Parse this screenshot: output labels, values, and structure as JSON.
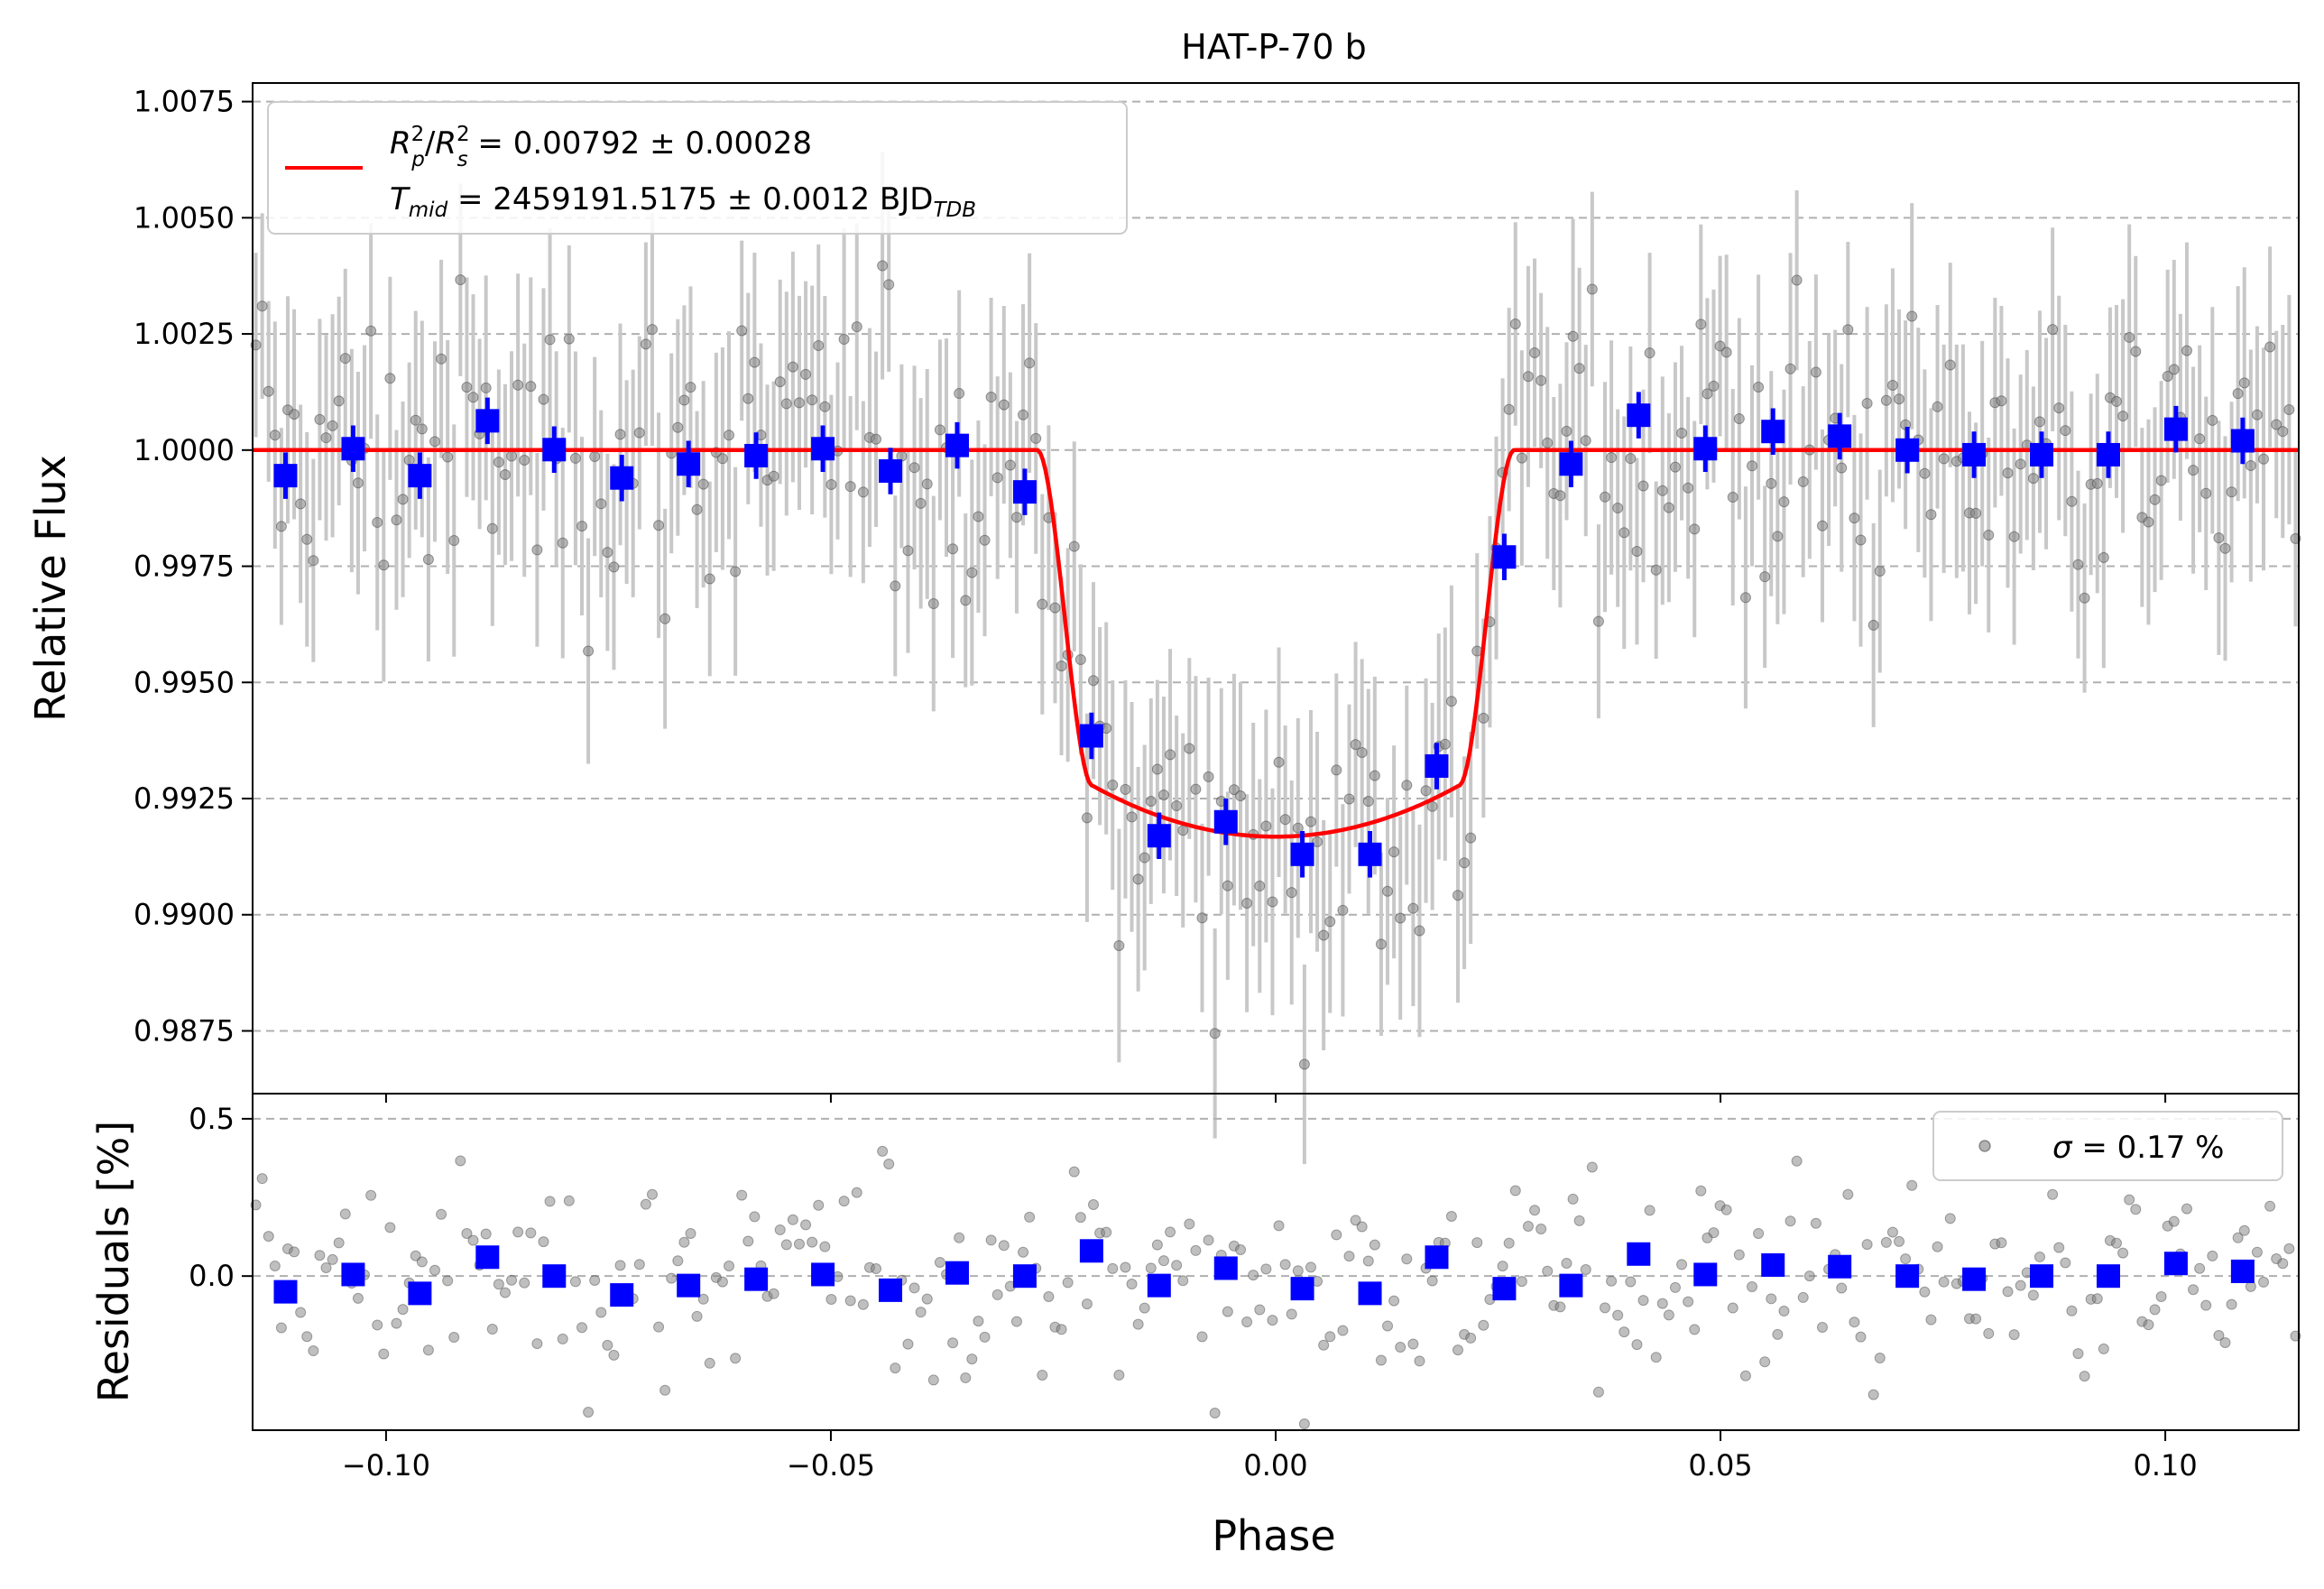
{
  "chart_data": [
    {
      "type": "scatter",
      "panel": "main",
      "title": "HAT-P-70 b",
      "xlabel": "",
      "ylabel": "Relative Flux",
      "xlim": [
        -0.115,
        0.115
      ],
      "ylim": [
        0.98615,
        1.0079
      ],
      "grid": "y dashed",
      "yticks": [
        "0.9875",
        "0.9900",
        "0.9925",
        "0.9950",
        "0.9975",
        "1.0000",
        "1.0025",
        "1.0050",
        "1.0075"
      ],
      "legend": {
        "placement": "top-left",
        "rp_label": "R",
        "rp_sup": "2",
        "rp_sub": "p",
        "rs_sub": "s",
        "rp_value": " = 0.00792 ± 0.00028",
        "tmid_label": "T",
        "tmid_sub": "mid",
        "tmid_value": " = 2459191.5175 ± 0.0012 BJD",
        "tdb_sub": "TDB"
      },
      "model": {
        "name": "transit model",
        "color": "#ff0000",
        "rp_rs_squared": 0.00792,
        "transit_half_width": 0.0268,
        "ingress_duration": 0.0062
      },
      "binned": {
        "color": "#0000ff",
        "x": [
          -0.1113,
          -0.1037,
          -0.0962,
          -0.0886,
          -0.0811,
          -0.0735,
          -0.066,
          -0.0584,
          -0.0509,
          -0.0433,
          -0.0358,
          -0.0282,
          -0.0207,
          -0.0131,
          -0.0056,
          0.003,
          0.0106,
          0.0181,
          0.0257,
          0.0332,
          0.0408,
          0.0483,
          0.0559,
          0.0634,
          0.071,
          0.0785,
          0.0861,
          0.0936,
          0.1012,
          0.1087
        ],
        "y": [
          0.99945,
          1.00003,
          0.99945,
          1.00063,
          1.00001,
          0.9994,
          0.9997,
          0.99988,
          1.00003,
          0.99955,
          1.0001,
          0.9991,
          0.99385,
          0.9917,
          0.992,
          0.9913,
          0.9913,
          0.9932,
          0.9977,
          0.9997,
          1.00075,
          1.00003,
          1.0004,
          1.0003,
          1.0,
          0.9999,
          0.9999,
          0.9999,
          1.00045,
          1.0002
        ],
        "yerr": 0.0005
      },
      "raw": {
        "color": "#808080",
        "n_points": 320,
        "scatter_sigma": 0.0017,
        "yerr": 0.0022
      }
    },
    {
      "type": "scatter",
      "panel": "residuals",
      "xlabel": "Phase",
      "ylabel": "Residuals [%]",
      "xlim": [
        -0.115,
        0.115
      ],
      "ylim": [
        -0.49,
        0.58
      ],
      "yticks": [
        "0.0",
        "0.5"
      ],
      "xticks": [
        "−0.10",
        "−0.05",
        "0.00",
        "0.05",
        "0.10"
      ],
      "legend": {
        "placement": "top-right",
        "sigma_symbol": "σ",
        "sigma_value": " = 0.17 %"
      },
      "binned_residuals": [
        -0.05,
        0.005,
        -0.055,
        0.06,
        0.0,
        -0.06,
        -0.03,
        -0.01,
        0.005,
        -0.045,
        0.01,
        0.0,
        0.08,
        -0.03,
        0.025,
        -0.04,
        -0.055,
        0.06,
        -0.04,
        -0.03,
        0.07,
        0.005,
        0.035,
        0.03,
        0.0,
        -0.01,
        0.0,
        0.0,
        0.04,
        0.015
      ],
      "raw_residual_sigma": 0.17
    }
  ]
}
